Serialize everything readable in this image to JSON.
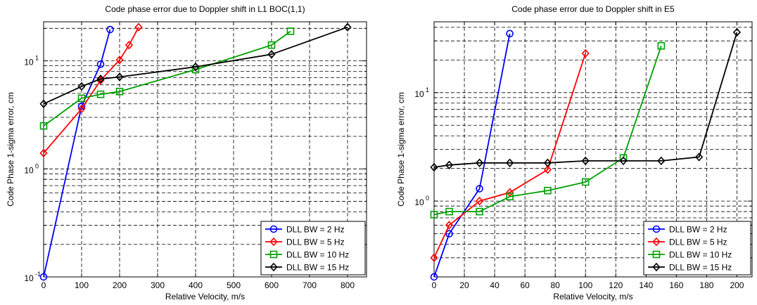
{
  "chart_data": [
    {
      "type": "line",
      "title": "Code phase error due to Doppler shift in L1 BOC(1,1)",
      "xlabel": "Relative Velocity, m/s",
      "ylabel": "Code Phase 1-sigma error, cm",
      "xscale": "linear",
      "yscale": "log",
      "xlim": [
        0,
        850
      ],
      "ylim": [
        0.1,
        23
      ],
      "xticks": [
        0,
        100,
        200,
        300,
        400,
        500,
        600,
        700,
        800
      ],
      "xtick_labels": [
        "0",
        "100",
        "200",
        "300",
        "400",
        "500",
        "600",
        "700",
        "800"
      ],
      "yticks": [
        0.1,
        1,
        10
      ],
      "ytick_labels": [
        {
          "base": "10",
          "exp": "-1"
        },
        {
          "base": "10",
          "exp": "0"
        },
        {
          "base": "10",
          "exp": "1"
        }
      ],
      "grid": true,
      "grid_style": "dashed",
      "legend_position": "bottom-right",
      "series": [
        {
          "name": "DLL BW = 2 Hz",
          "color": "#0000ff",
          "marker": "circle",
          "x": [
            0,
            100,
            150,
            175
          ],
          "y": [
            0.1,
            3.8,
            9.3,
            19.5
          ]
        },
        {
          "name": "DLL BW = 5 Hz",
          "color": "#ff0000",
          "marker": "diamond",
          "x": [
            0,
            100,
            150,
            200,
            225,
            250
          ],
          "y": [
            1.4,
            3.6,
            6.6,
            10.2,
            14,
            20.5
          ]
        },
        {
          "name": "DLL BW = 10 Hz",
          "color": "#00a000",
          "marker": "square",
          "x": [
            0,
            100,
            150,
            200,
            400,
            600,
            650
          ],
          "y": [
            2.5,
            4.5,
            4.9,
            5.2,
            8.3,
            14,
            18.8
          ]
        },
        {
          "name": "DLL BW = 15 Hz",
          "color": "#000000",
          "marker": "diamond",
          "x": [
            0,
            100,
            150,
            200,
            400,
            600,
            800
          ],
          "y": [
            4,
            5.8,
            6.8,
            7.1,
            8.8,
            11.5,
            20.5
          ]
        }
      ]
    },
    {
      "type": "line",
      "title": "Code phase error due to Doppler shift in E5",
      "xlabel": "Relative Velocity, m/s",
      "ylabel": "Code Phase 1-sigma error, cm",
      "xscale": "linear",
      "yscale": "log",
      "xlim": [
        0,
        210
      ],
      "ylim": [
        0.2,
        45
      ],
      "xticks": [
        0,
        20,
        40,
        60,
        80,
        100,
        120,
        140,
        160,
        180,
        200
      ],
      "xtick_labels": [
        "0",
        "20",
        "40",
        "60",
        "80",
        "100",
        "120",
        "140",
        "160",
        "180",
        "200"
      ],
      "yticks": [
        1,
        10
      ],
      "ytick_labels": [
        {
          "base": "10",
          "exp": "0"
        },
        {
          "base": "10",
          "exp": "1"
        }
      ],
      "grid": true,
      "grid_style": "dashed",
      "legend_position": "bottom-right",
      "series": [
        {
          "name": "DLL BW = 2 Hz",
          "color": "#0000ff",
          "marker": "circle",
          "x": [
            0,
            10,
            30,
            50
          ],
          "y": [
            0.2,
            0.5,
            1.3,
            35
          ]
        },
        {
          "name": "DLL BW = 5 Hz",
          "color": "#ff0000",
          "marker": "diamond",
          "x": [
            0,
            10,
            30,
            50,
            75,
            100
          ],
          "y": [
            0.3,
            0.6,
            1.0,
            1.2,
            1.95,
            23
          ]
        },
        {
          "name": "DLL BW = 10 Hz",
          "color": "#00a000",
          "marker": "square",
          "x": [
            0,
            10,
            30,
            50,
            75,
            100,
            125,
            150
          ],
          "y": [
            0.75,
            0.8,
            0.8,
            1.1,
            1.25,
            1.5,
            2.5,
            27
          ]
        },
        {
          "name": "DLL BW = 15 Hz",
          "color": "#000000",
          "marker": "diamond",
          "x": [
            0,
            10,
            30,
            50,
            75,
            100,
            125,
            150,
            175,
            200
          ],
          "y": [
            2.05,
            2.15,
            2.25,
            2.25,
            2.25,
            2.35,
            2.35,
            2.35,
            2.55,
            36
          ]
        }
      ]
    }
  ]
}
